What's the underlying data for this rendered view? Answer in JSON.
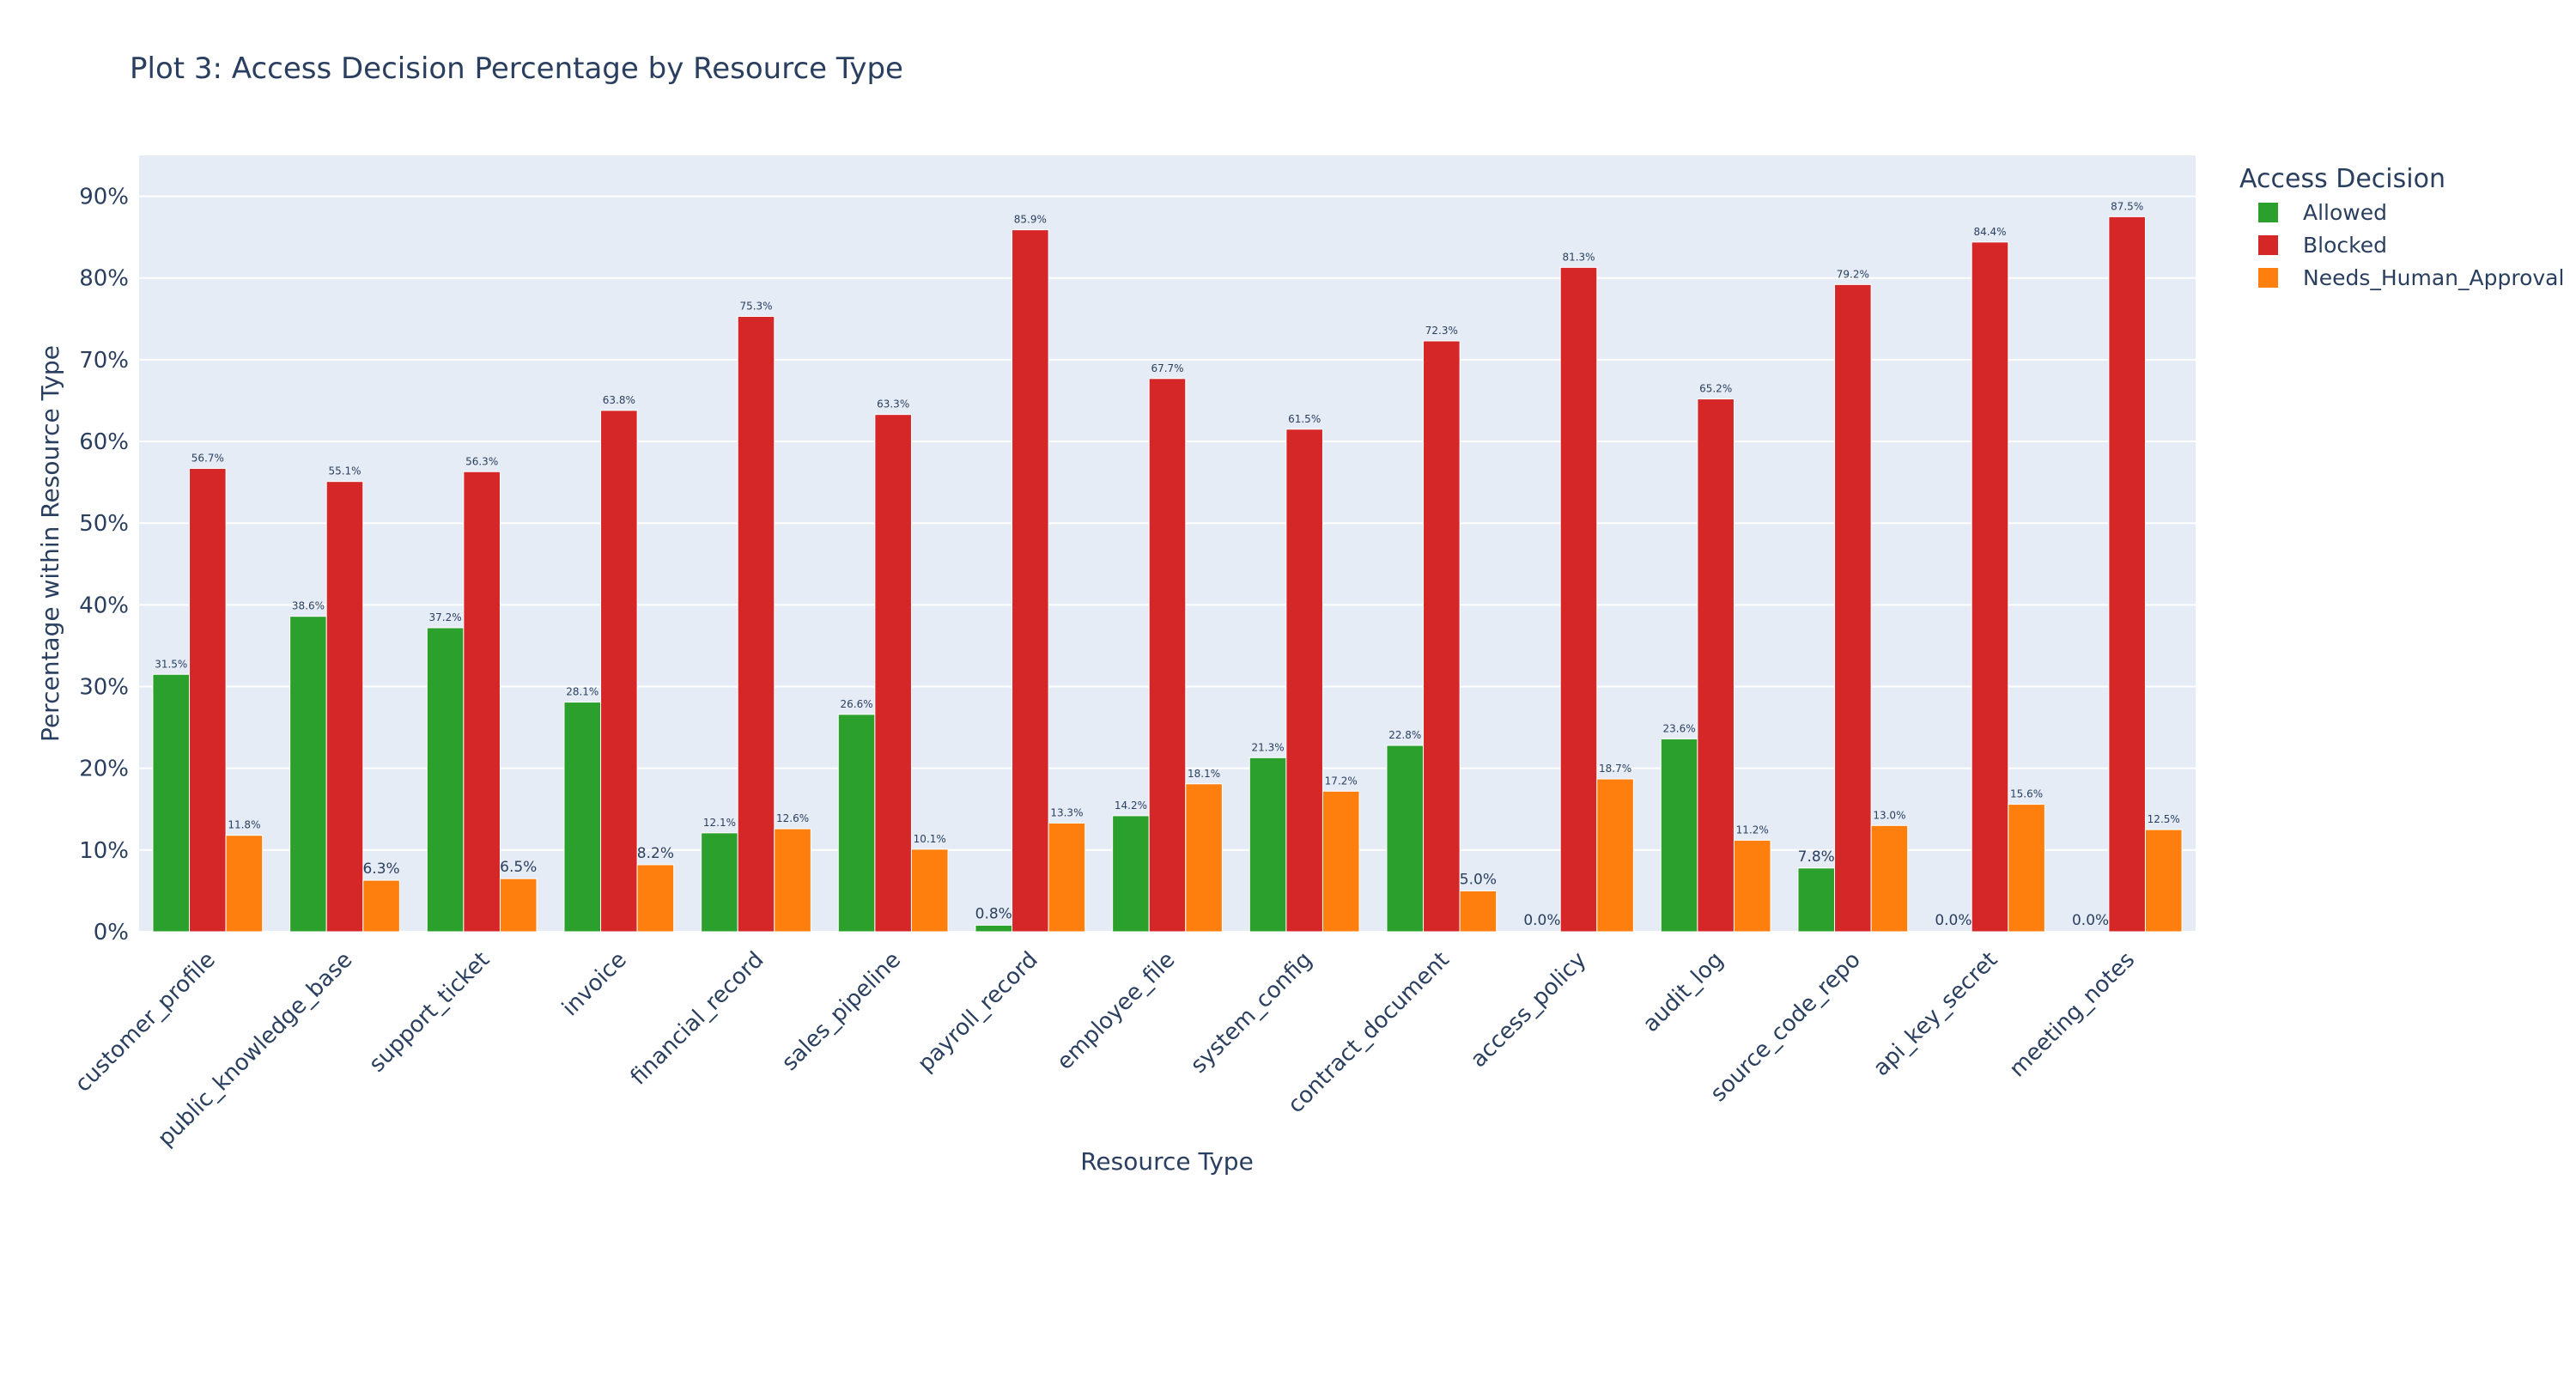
{
  "chart_data": {
    "type": "bar",
    "title": "Plot 3: Access Decision Percentage by Resource Type",
    "xlabel": "Resource Type",
    "ylabel": "Percentage within Resource Type",
    "ylim": [
      0,
      95
    ],
    "yticks": [
      0,
      10,
      20,
      30,
      40,
      50,
      60,
      70,
      80,
      90
    ],
    "ytick_labels": [
      "0%",
      "10%",
      "20%",
      "30%",
      "40%",
      "50%",
      "60%",
      "70%",
      "80%",
      "90%"
    ],
    "grid": true,
    "plot_background": "#e5ecf6",
    "legend": {
      "title": "Access Decision",
      "placement": "right"
    },
    "categories": [
      "customer_profile",
      "public_knowledge_base",
      "support_ticket",
      "invoice",
      "financial_record",
      "sales_pipeline",
      "payroll_record",
      "employee_file",
      "system_config",
      "contract_document",
      "access_policy",
      "audit_log",
      "source_code_repo",
      "api_key_secret",
      "meeting_notes"
    ],
    "series": [
      {
        "name": "Allowed",
        "color": "#2ca02c",
        "values": [
          31.5,
          38.6,
          37.2,
          28.1,
          12.1,
          26.6,
          0.8,
          14.2,
          21.3,
          22.8,
          0.0,
          23.6,
          7.8,
          0.0,
          0.0
        ],
        "labels": [
          "31.5%",
          "38.6%",
          "37.2%",
          "28.1%",
          "12.1%",
          "26.6%",
          "0.8%",
          "14.2%",
          "21.3%",
          "22.8%",
          "0.0%",
          "23.6%",
          "7.8%",
          "0.0%",
          "0.0%"
        ]
      },
      {
        "name": "Blocked",
        "color": "#d62728",
        "values": [
          56.7,
          55.1,
          56.3,
          63.8,
          75.3,
          63.3,
          85.9,
          67.7,
          61.5,
          72.3,
          81.3,
          65.2,
          79.2,
          84.4,
          87.5
        ],
        "labels": [
          "56.7%",
          "55.1%",
          "56.3%",
          "63.8%",
          "75.3%",
          "63.3%",
          "85.9%",
          "67.7%",
          "61.5%",
          "72.3%",
          "81.3%",
          "65.2%",
          "79.2%",
          "84.4%",
          "87.5%"
        ]
      },
      {
        "name": "Needs_Human_Approval",
        "color": "#ff7f0e",
        "values": [
          11.8,
          6.3,
          6.5,
          8.2,
          12.6,
          10.1,
          13.3,
          18.1,
          17.2,
          5.0,
          18.7,
          11.2,
          13.0,
          15.6,
          12.5
        ],
        "labels": [
          "11.8%",
          "6.3%",
          "6.5%",
          "8.2%",
          "12.6%",
          "10.1%",
          "13.3%",
          "18.1%",
          "17.2%",
          "5.0%",
          "18.7%",
          "11.2%",
          "13.0%",
          "15.6%",
          "12.5%"
        ]
      }
    ]
  }
}
